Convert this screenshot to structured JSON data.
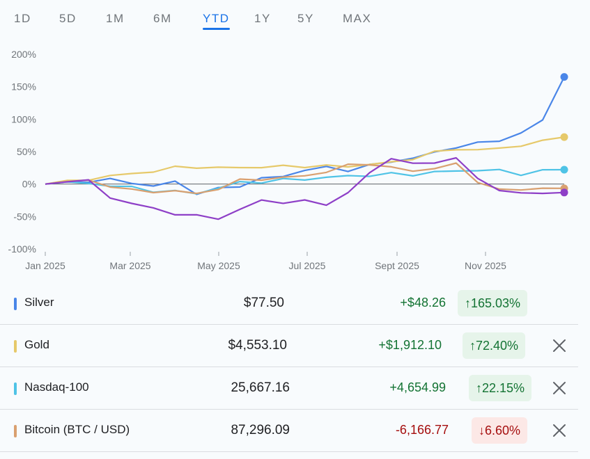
{
  "range_tabs": [
    "1D",
    "5D",
    "1M",
    "6M",
    "YTD",
    "1Y",
    "5Y",
    "MAX"
  ],
  "active_tab": "YTD",
  "colors": {
    "silver": "#4a86e8",
    "gold": "#e6c96a",
    "nasdaq": "#4fc3e6",
    "bitcoin": "#d9a070",
    "baseline": "#5f6368",
    "up_text": "#137333",
    "down_text": "#a50e0e"
  },
  "chart_data": {
    "type": "line",
    "y_tick_labels": [
      "200%",
      "150%",
      "100%",
      "50%",
      "0%",
      "-50%",
      "-100%"
    ],
    "ylim": [
      -100,
      200
    ],
    "x_tick_labels": [
      "Jan 2025",
      "Mar 2025",
      "May 2025",
      "Jul 2025",
      "Sept 2025",
      "Nov 2025"
    ],
    "x": [
      "Jan 1",
      "Jan 15",
      "Feb 1",
      "Feb 15",
      "Mar 1",
      "Mar 15",
      "Apr 1",
      "Apr 15",
      "May 1",
      "May 15",
      "Jun 1",
      "Jun 15",
      "Jul 1",
      "Jul 15",
      "Aug 1",
      "Aug 15",
      "Sep 1",
      "Sep 15",
      "Oct 1",
      "Oct 15",
      "Nov 1",
      "Nov 15",
      "Dec 1",
      "Dec 15",
      "Dec 31"
    ],
    "series": [
      {
        "name": "Silver",
        "color": "#4a86e8",
        "values": [
          0,
          2,
          5,
          6,
          3,
          -4,
          4,
          -14,
          -8,
          -2,
          8,
          12,
          22,
          25,
          22,
          28,
          35,
          40,
          48,
          58,
          62,
          68,
          78,
          98,
          165
        ]
      },
      {
        "name": "Gold",
        "color": "#e6c96a",
        "values": [
          0,
          3,
          8,
          12,
          16,
          20,
          25,
          27,
          24,
          26,
          26,
          27,
          28,
          27,
          28,
          30,
          33,
          40,
          48,
          55,
          52,
          55,
          60,
          65,
          72.4
        ]
      },
      {
        "name": "Nasdaq-100",
        "color": "#4fc3e6",
        "values": [
          0,
          2,
          1,
          -2,
          -6,
          -10,
          -12,
          -14,
          -6,
          2,
          4,
          6,
          8,
          10,
          12,
          14,
          15,
          15,
          18,
          20,
          22,
          20,
          16,
          20,
          22.15
        ]
      },
      {
        "name": "Bitcoin (BTC / USD)",
        "color": "#d9a070",
        "values": [
          0,
          5,
          4,
          -2,
          -10,
          -12,
          -10,
          -16,
          -6,
          5,
          8,
          10,
          12,
          20,
          28,
          32,
          25,
          20,
          25,
          30,
          5,
          -10,
          -8,
          -6,
          -6.6
        ]
      },
      {
        "name": "",
        "color": "#8e3fc7",
        "values": [
          0,
          6,
          4,
          -20,
          -30,
          -38,
          -45,
          -50,
          -52,
          -40,
          -25,
          -28,
          -27,
          -30,
          -15,
          18,
          40,
          30,
          35,
          38,
          10,
          -10,
          -15,
          -12,
          -13
        ]
      }
    ]
  },
  "rows": [
    {
      "name": "Silver",
      "price": "$77.50",
      "change": "+$48.26",
      "percent": "165.03%",
      "arrow": "↑",
      "direction": "up",
      "color": "#4a86e8"
    },
    {
      "name": "Gold",
      "price": "$4,553.10",
      "change": "+$1,912.10",
      "percent": "72.40%",
      "arrow": "↑",
      "direction": "up",
      "color": "#e6c96a"
    },
    {
      "name": "Nasdaq-100",
      "price": "25,667.16",
      "change": "+4,654.99",
      "percent": "22.15%",
      "arrow": "↑",
      "direction": "up",
      "color": "#4fc3e6"
    },
    {
      "name": "Bitcoin (BTC / USD)",
      "price": "87,296.09",
      "change": "-6,166.77",
      "percent": "6.60%",
      "arrow": "↓",
      "direction": "down",
      "color": "#d9a070"
    }
  ]
}
